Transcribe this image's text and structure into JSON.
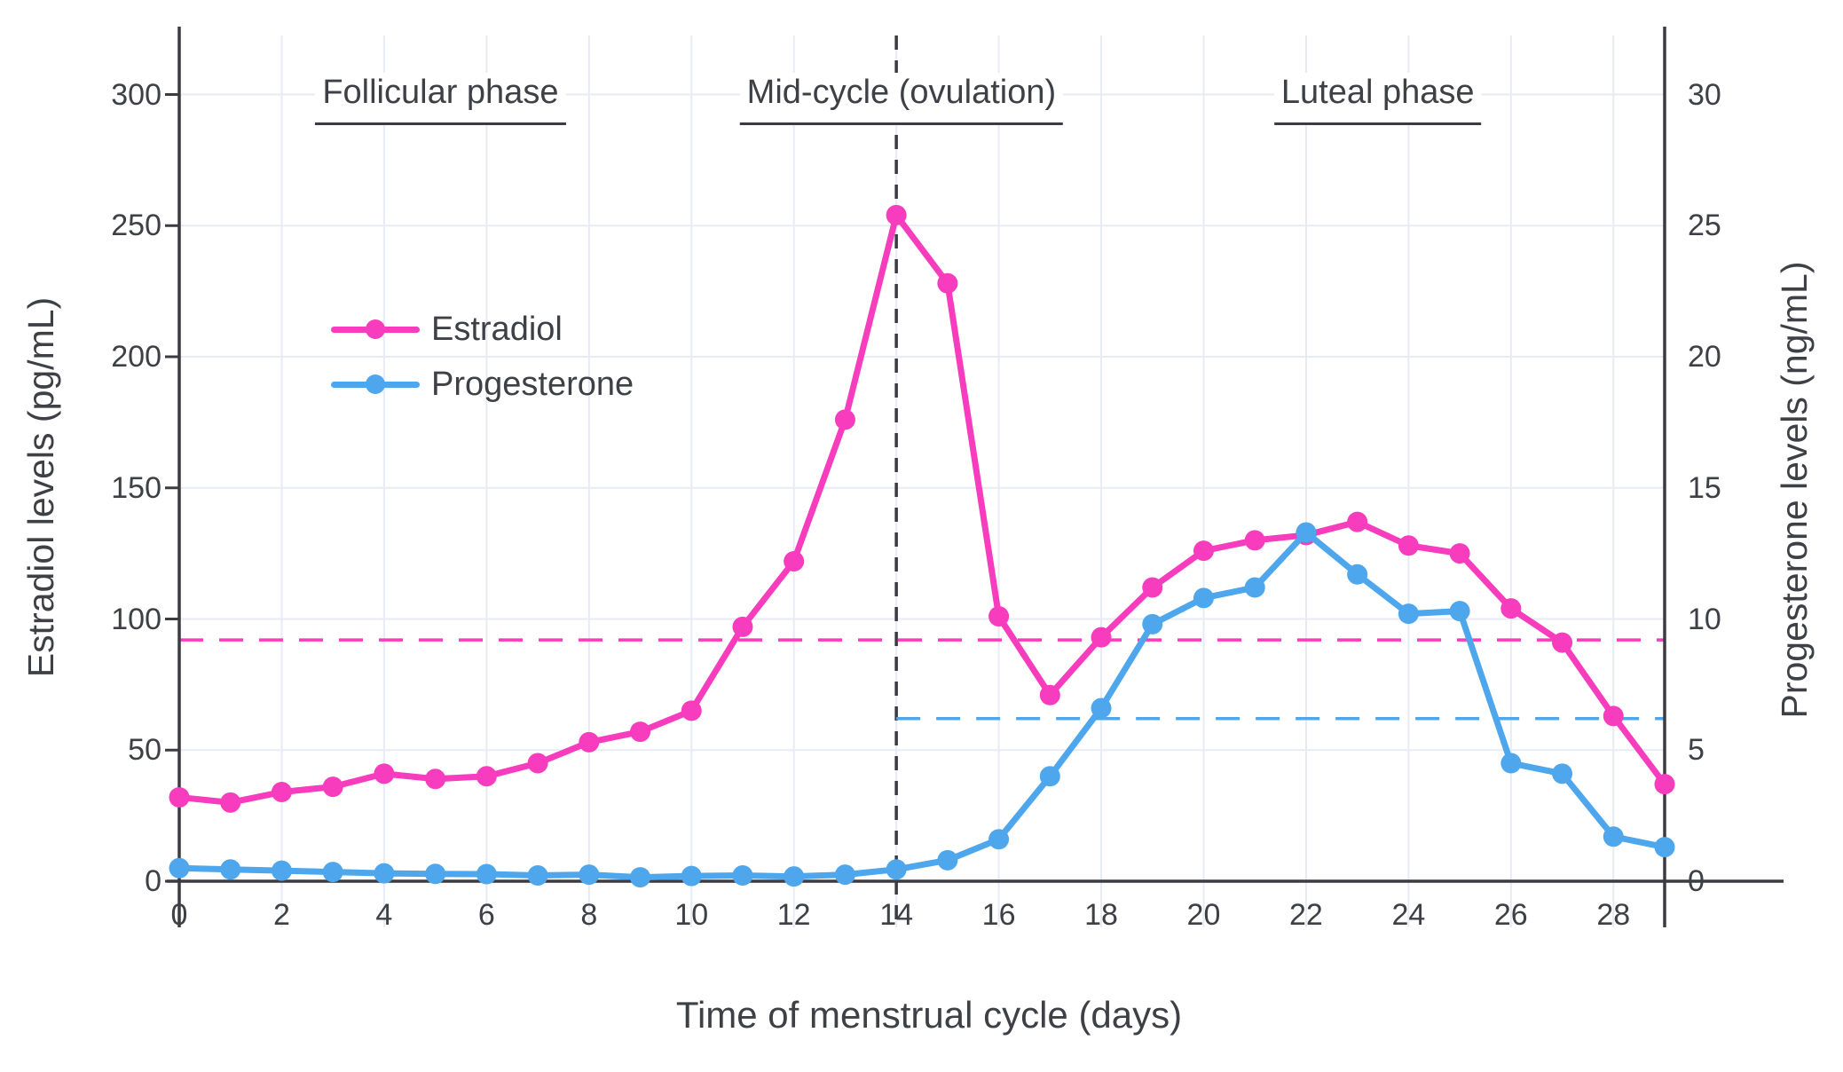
{
  "chart_data": {
    "type": "line",
    "x": [
      0,
      1,
      2,
      3,
      4,
      5,
      6,
      7,
      8,
      9,
      10,
      11,
      12,
      13,
      14,
      15,
      16,
      17,
      18,
      19,
      20,
      21,
      22,
      23,
      24,
      25,
      26,
      27,
      28,
      29
    ],
    "series": [
      {
        "name": "Estradiol",
        "axis": "left",
        "color": "#F73CBE",
        "values": [
          32,
          30,
          34,
          36,
          41,
          39,
          40,
          45,
          53,
          57,
          65,
          97,
          122,
          176,
          254,
          228,
          101,
          71,
          93,
          112,
          126,
          130,
          132,
          137,
          128,
          125,
          104,
          91,
          63,
          37
        ]
      },
      {
        "name": "Progesterone",
        "axis": "right",
        "color": "#4EA6EC",
        "values": [
          0.5,
          0.45,
          0.4,
          0.35,
          0.3,
          0.28,
          0.27,
          0.22,
          0.25,
          0.15,
          0.2,
          0.22,
          0.18,
          0.25,
          0.45,
          0.8,
          1.6,
          4.0,
          6.6,
          9.8,
          10.8,
          11.2,
          13.3,
          11.7,
          10.2,
          10.3,
          4.5,
          4.1,
          1.7,
          1.3
        ]
      }
    ],
    "xlabel": "Time of menstrual cycle (days)",
    "ylabel_left": "Estradiol levels (pg/mL)",
    "ylabel_right": "Progesterone levels (ng/mL)",
    "xlim": [
      0,
      29
    ],
    "ylim_left": [
      0,
      300
    ],
    "ylim_right": [
      0,
      30
    ],
    "x_ticks": [
      0,
      2,
      4,
      6,
      8,
      10,
      12,
      14,
      16,
      18,
      20,
      22,
      24,
      26,
      28
    ],
    "y_ticks_left": [
      0,
      50,
      100,
      150,
      200,
      250,
      300
    ],
    "y_ticks_right": [
      0,
      5,
      10,
      15,
      20,
      25,
      30
    ],
    "grid": true,
    "legend_position": "upper-left-inside",
    "annotations": {
      "phases": [
        {
          "label": "Follicular phase",
          "center_day": 5.1
        },
        {
          "label": "Mid-cycle (ovulation)",
          "center_day": 14.1
        },
        {
          "label": "Luteal phase",
          "center_day": 23.4
        }
      ],
      "ovulation_line_day": 14,
      "estradiol_baseline_pgml": 92,
      "progesterone_baseline_ngml": 6.2,
      "progesterone_baseline_start_day": 14
    }
  },
  "colors": {
    "estradiol": "#F73CBE",
    "progesterone": "#4EA6EC",
    "axis": "#3B3B41",
    "text": "#3E4046",
    "gridline": "#E8EBF4",
    "background": "#FFFFFF"
  }
}
